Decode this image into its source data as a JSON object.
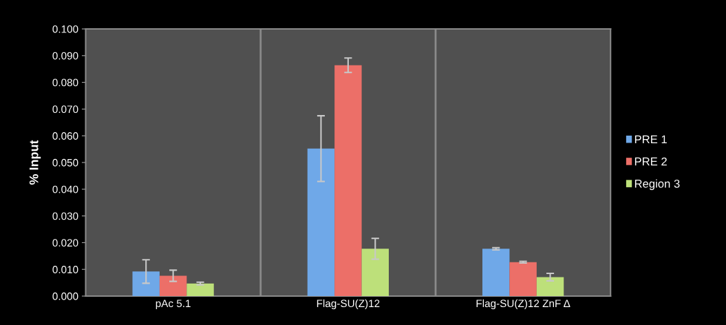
{
  "chart_data": {
    "type": "bar",
    "ylabel": "% Input",
    "categories": [
      "pAc 5.1",
      "Flag-SU(Z)12",
      "Flag-SU(Z)12 ZnF Δ"
    ],
    "series": [
      {
        "name": "PRE 1",
        "color": "#6fa8e8",
        "values": [
          0.0092,
          0.0552,
          0.0177
        ],
        "errors": [
          0.0044,
          0.0123,
          0.0004
        ]
      },
      {
        "name": "PRE 2",
        "color": "#ec6f68",
        "values": [
          0.0076,
          0.0864,
          0.0127
        ],
        "errors": [
          0.0021,
          0.0027,
          0.0003
        ]
      },
      {
        "name": "Region 3",
        "color": "#bde07a",
        "values": [
          0.0047,
          0.0177,
          0.0071
        ],
        "errors": [
          0.0005,
          0.0039,
          0.0014
        ]
      }
    ],
    "ylim": [
      0,
      0.1
    ],
    "yticks": [
      {
        "value": 0,
        "label": "0.000"
      },
      {
        "value": 0.01,
        "label": "0.010"
      },
      {
        "value": 0.02,
        "label": "0.020"
      },
      {
        "value": 0.03,
        "label": "0.030"
      },
      {
        "value": 0.04,
        "label": "0.040"
      },
      {
        "value": 0.05,
        "label": "0.050"
      },
      {
        "value": 0.06,
        "label": "0.060"
      },
      {
        "value": 0.07,
        "label": "0.070"
      },
      {
        "value": 0.08,
        "label": "0.080"
      },
      {
        "value": 0.09,
        "label": "0.090"
      },
      {
        "value": 0.1,
        "label": "0.100"
      }
    ],
    "grid": "x",
    "legend": "right"
  }
}
